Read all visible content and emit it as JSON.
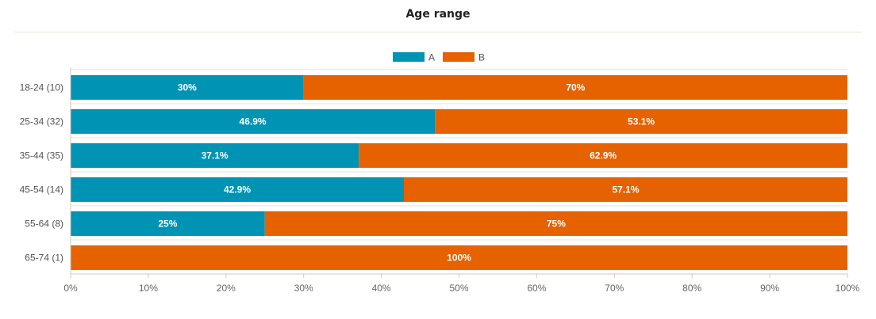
{
  "chart_data": {
    "type": "bar",
    "orientation": "horizontal",
    "stacked": true,
    "title": "Age range",
    "categories": [
      "18-24 (10)",
      "25-34 (32)",
      "35-44 (35)",
      "45-54 (14)",
      "55-64 (8)",
      "65-74 (1)"
    ],
    "series": [
      {
        "name": "A",
        "color": "#0093b4",
        "values": [
          30,
          46.9,
          37.1,
          42.9,
          25,
          0
        ],
        "labels": [
          "30%",
          "46.9%",
          "37.1%",
          "42.9%",
          "25%",
          ""
        ]
      },
      {
        "name": "B",
        "color": "#e66100",
        "values": [
          70,
          53.1,
          62.9,
          57.1,
          75,
          100
        ],
        "labels": [
          "70%",
          "53.1%",
          "62.9%",
          "57.1%",
          "75%",
          "100%"
        ]
      }
    ],
    "xlim": [
      0,
      100
    ],
    "xticks": [
      "0%",
      "10%",
      "20%",
      "30%",
      "40%",
      "50%",
      "60%",
      "70%",
      "80%",
      "90%",
      "100%"
    ],
    "legend": "top-center",
    "grid": false
  }
}
